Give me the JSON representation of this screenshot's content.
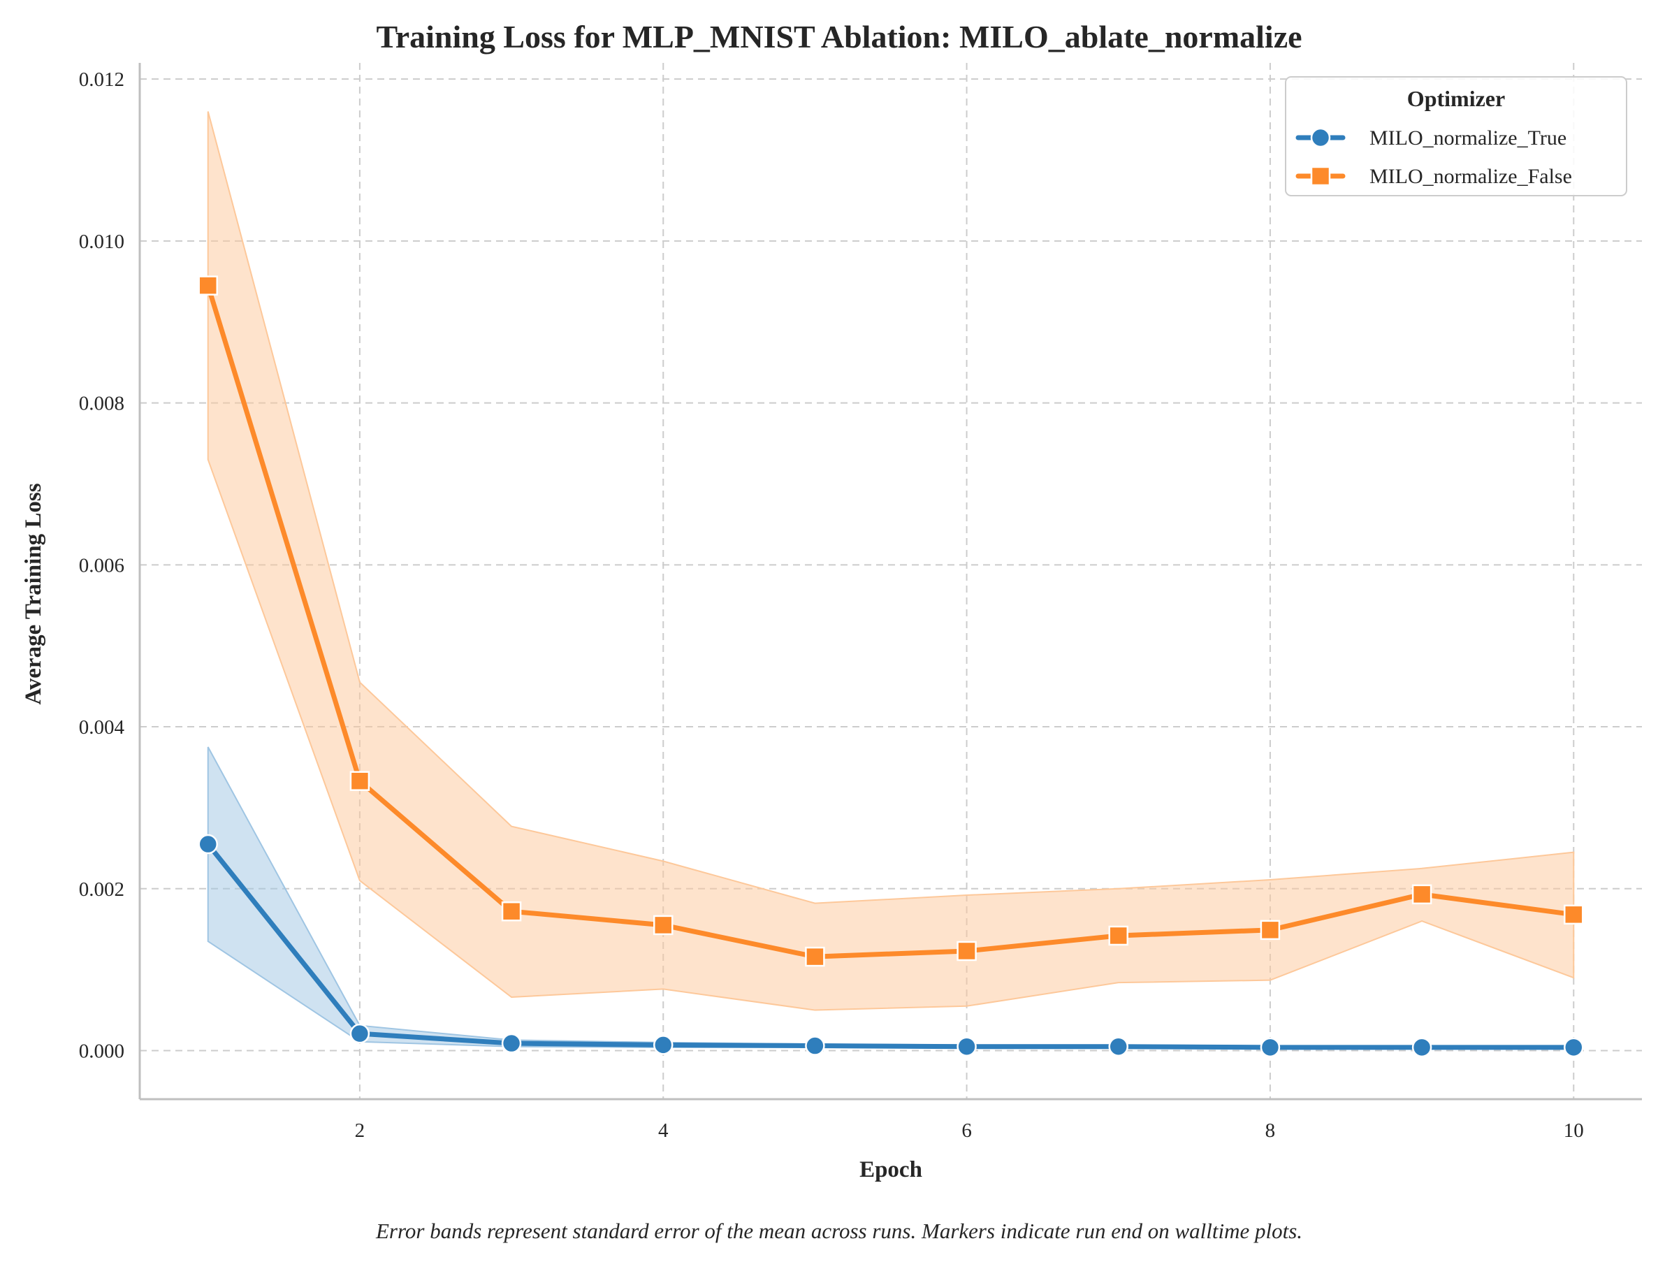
{
  "chart_data": {
    "type": "line",
    "title": "Training Loss for MLP_MNIST Ablation: MILO_ablate_normalize",
    "xlabel": "Epoch",
    "ylabel": "Average Training Loss",
    "xlim": [
      0.55,
      10.45
    ],
    "ylim": [
      -0.0006,
      0.0122
    ],
    "xticks": [
      2,
      4,
      6,
      8,
      10
    ],
    "xtick_labels": [
      "2",
      "4",
      "6",
      "8",
      "10"
    ],
    "yticks": [
      0.0,
      0.002,
      0.004,
      0.006,
      0.008,
      0.01,
      0.012
    ],
    "ytick_labels": [
      "0.000",
      "0.002",
      "0.004",
      "0.006",
      "0.008",
      "0.010",
      "0.012"
    ],
    "grid": true,
    "legend": {
      "title": "Optimizer",
      "placement": "top-right"
    },
    "x": [
      1,
      2,
      3,
      4,
      5,
      6,
      7,
      8,
      9,
      10
    ],
    "series": [
      {
        "name": "MILO_normalize_True",
        "color": "#2f7ebc",
        "band_color": "#9fc5e3",
        "marker": "circle",
        "values": [
          0.00255,
          0.00021,
          9e-05,
          7e-05,
          6e-05,
          5e-05,
          5e-05,
          4e-05,
          4e-05,
          4e-05
        ],
        "lower": [
          0.00135,
          0.00011,
          5e-05,
          4e-05,
          4e-05,
          3e-05,
          3e-05,
          3e-05,
          3e-05,
          2e-05
        ],
        "upper": [
          0.00375,
          0.00031,
          0.00013,
          0.0001,
          8e-05,
          7e-05,
          7e-05,
          6e-05,
          6e-05,
          6e-05
        ]
      },
      {
        "name": "MILO_normalize_False",
        "color": "#fd8a2a",
        "band_color": "#fdc89a",
        "marker": "square",
        "values": [
          0.00945,
          0.00333,
          0.00172,
          0.00155,
          0.00116,
          0.00123,
          0.00142,
          0.00149,
          0.00193,
          0.00168
        ],
        "lower": [
          0.0073,
          0.0021,
          0.00066,
          0.00076,
          0.0005,
          0.00055,
          0.00084,
          0.00087,
          0.0016,
          0.0009
        ],
        "upper": [
          0.0116,
          0.00455,
          0.00277,
          0.00234,
          0.00182,
          0.00192,
          0.002,
          0.00211,
          0.00225,
          0.00245
        ]
      }
    ],
    "caption": "Error bands represent standard error of the mean across runs. Markers indicate run end on walltime plots."
  }
}
